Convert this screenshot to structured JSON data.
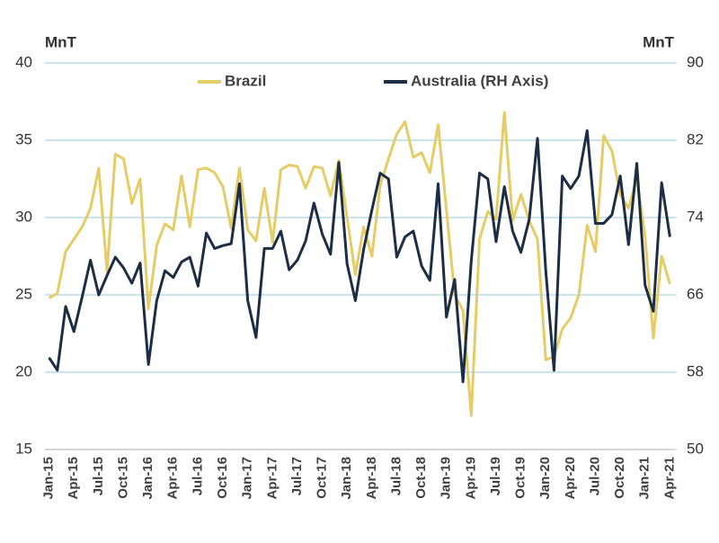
{
  "chart_data": {
    "type": "line",
    "y_label": "MnT",
    "y2_label": "MnT",
    "categories": [
      "Jan-15",
      null,
      null,
      "Apr-15",
      null,
      null,
      "Jul-15",
      null,
      null,
      "Oct-15",
      null,
      null,
      "Jan-16",
      null,
      null,
      "Apr-16",
      null,
      null,
      "Jul-16",
      null,
      null,
      "Oct-16",
      null,
      null,
      "Jan-17",
      null,
      null,
      "Apr-17",
      null,
      null,
      "Jul-17",
      null,
      null,
      "Oct-17",
      null,
      null,
      "Jan-18",
      null,
      null,
      "Apr-18",
      null,
      null,
      "Jul-18",
      null,
      null,
      "Oct-18",
      null,
      null,
      "Jan-19",
      null,
      null,
      "Apr-19",
      null,
      null,
      "Jul-19",
      null,
      null,
      "Oct-19",
      null,
      null,
      "Jan-20",
      null,
      null,
      "Apr-20",
      null,
      null,
      "Jul-20",
      null,
      null,
      "Oct-20",
      null,
      null,
      "Jan-21",
      null,
      null,
      "Apr-21"
    ],
    "series": [
      {
        "name": "Brazil",
        "color": "#e6cc66",
        "values": [
          24.8,
          25.1,
          27.8,
          28.6,
          29.4,
          30.6,
          33.2,
          26.5,
          34.1,
          33.8,
          30.9,
          32.5,
          24.1,
          28.2,
          29.6,
          29.2,
          32.7,
          29.4,
          33.1,
          33.2,
          32.9,
          32.0,
          29.3,
          33.2,
          29.2,
          28.5,
          31.9,
          28.4,
          33.1,
          33.4,
          33.3,
          31.9,
          33.3,
          33.2,
          31.4,
          33.7,
          30.0,
          26.3,
          29.4,
          27.5,
          32.1,
          33.8,
          35.4,
          36.2,
          33.9,
          34.2,
          32.9,
          36.0,
          30.5,
          25.0,
          24.0,
          17.2,
          28.6,
          30.4,
          29.9,
          36.8,
          29.8,
          31.5,
          29.8,
          28.6,
          20.8,
          21.0,
          22.8,
          23.5,
          25.0,
          29.5,
          27.8,
          35.3,
          34.3,
          31.5,
          30.6,
          32.5,
          28.8,
          22.2,
          27.5,
          25.7
        ]
      },
      {
        "name": "Australia (RH Axis)",
        "color": "#1c2e45",
        "axis": "y2",
        "values": [
          59.5,
          58.2,
          64.8,
          62.2,
          65.8,
          69.6,
          66.0,
          68.0,
          69.9,
          68.8,
          67.2,
          69.3,
          58.8,
          65.4,
          68.5,
          67.8,
          69.4,
          69.9,
          66.9,
          72.4,
          70.8,
          71.1,
          71.3,
          77.5,
          65.4,
          61.6,
          70.8,
          70.8,
          72.6,
          68.6,
          69.6,
          71.6,
          75.5,
          72.3,
          70.2,
          79.7,
          69.2,
          65.4,
          70.7,
          74.8,
          78.6,
          78.0,
          69.9,
          72.0,
          72.6,
          69.0,
          67.5,
          77.5,
          63.7,
          67.6,
          57.0,
          69.5,
          78.6,
          78.0,
          71.5,
          77.2,
          72.6,
          70.4,
          73.8,
          82.2,
          68.5,
          58.2,
          78.3,
          77.0,
          78.3,
          83.0,
          73.4,
          73.4,
          74.3,
          78.3,
          71.2,
          79.6,
          67.0,
          64.3,
          77.6,
          72.0
        ]
      }
    ],
    "ylim": [
      15,
      40
    ],
    "yticks": [
      15,
      20,
      25,
      30,
      35,
      40
    ],
    "y2lim": [
      50,
      90
    ],
    "y2ticks": [
      50,
      58,
      66,
      74,
      82,
      90
    ],
    "grid": true,
    "legend": "top"
  }
}
